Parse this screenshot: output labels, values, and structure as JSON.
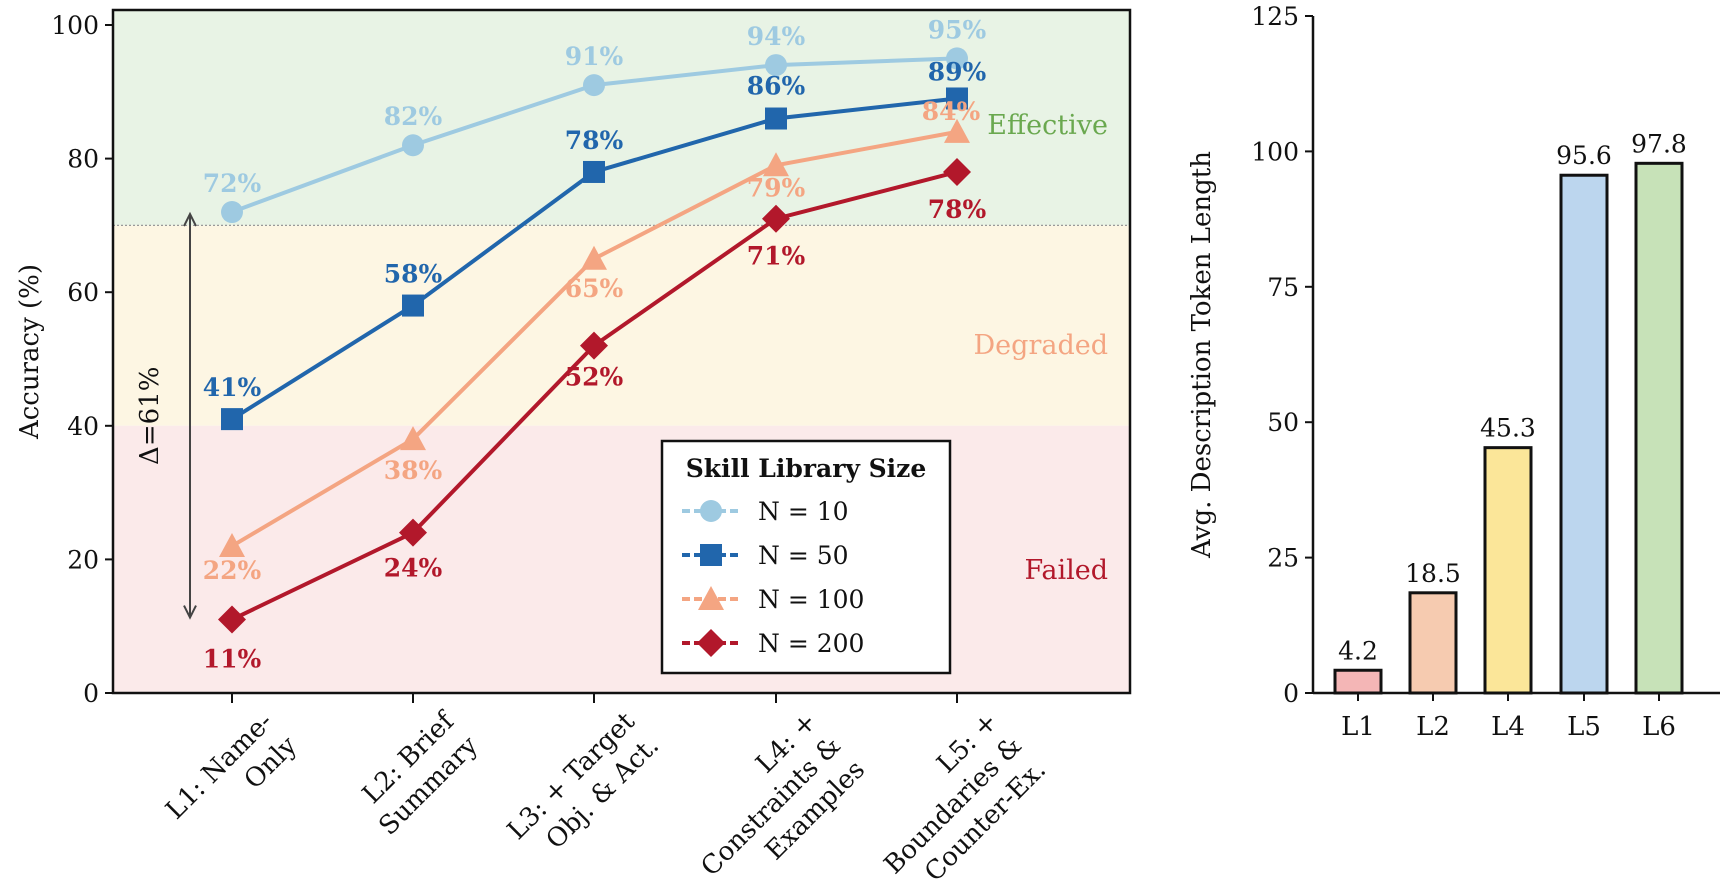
{
  "chart_data": [
    {
      "type": "line",
      "ylabel": "Accuracy (%)",
      "ylim": [
        0,
        100
      ],
      "yticks": [
        "0",
        "20",
        "40",
        "60",
        "80",
        "100"
      ],
      "categories": [
        "L1: Name-\nOnly",
        "L2: Brief\nSummary",
        "L3: + Target\nObj. & Act.",
        "L4: +\nConstraints &\nExamples",
        "L5: +\nBoundaries &\nCounter-Ex."
      ],
      "series": [
        {
          "name": "N = 10",
          "marker": "circle",
          "color": "#9ecae1",
          "values": [
            72,
            82,
            91,
            94,
            95
          ],
          "labels": [
            "72%",
            "82%",
            "91%",
            "94%",
            "95%"
          ]
        },
        {
          "name": "N = 50",
          "marker": "square",
          "color": "#2166ac",
          "values": [
            41,
            58,
            78,
            86,
            89
          ],
          "labels": [
            "41%",
            "58%",
            "78%",
            "86%",
            "89%"
          ]
        },
        {
          "name": "N = 100",
          "marker": "triangle",
          "color": "#f4a582",
          "values": [
            22,
            38,
            65,
            79,
            84
          ],
          "labels": [
            "22%",
            "38%",
            "65%",
            "79%",
            "84%"
          ]
        },
        {
          "name": "N = 200",
          "marker": "diamond",
          "color": "#b2182b",
          "values": [
            11,
            24,
            52,
            71,
            78
          ],
          "labels": [
            "11%",
            "24%",
            "52%",
            "71%",
            "78%"
          ]
        }
      ],
      "zones": [
        {
          "label": "Effective",
          "from": 70,
          "to": 100,
          "color": "#e8f3e5",
          "text_color": "#6aa84f"
        },
        {
          "label": "Degraded",
          "from": 40,
          "to": 70,
          "color": "#fdf6e3",
          "text_color": "#f4a582"
        },
        {
          "label": "Failed",
          "from": 0,
          "to": 40,
          "color": "#fbeaea",
          "text_color": "#b2182b"
        }
      ],
      "threshold_line": 70,
      "annotation": {
        "text": "Δ=61%",
        "from": 11,
        "to": 72
      },
      "legend": {
        "title": "Skill Library Size",
        "position": "lower-right"
      }
    },
    {
      "type": "bar",
      "ylabel": "Avg. Description Token Length",
      "ylim": [
        0,
        125
      ],
      "yticks": [
        "0",
        "25",
        "50",
        "75",
        "100",
        "125"
      ],
      "categories": [
        "L1",
        "L2",
        "L4",
        "L5",
        "L6"
      ],
      "values": [
        4.2,
        18.5,
        45.3,
        95.6,
        97.8
      ],
      "labels": [
        "4.2",
        "18.5",
        "45.3",
        "95.6",
        "97.8"
      ],
      "colors": [
        "#f4b6b6",
        "#f6cbb0",
        "#fbe699",
        "#bcd6ee",
        "#c7e2b8"
      ]
    }
  ]
}
